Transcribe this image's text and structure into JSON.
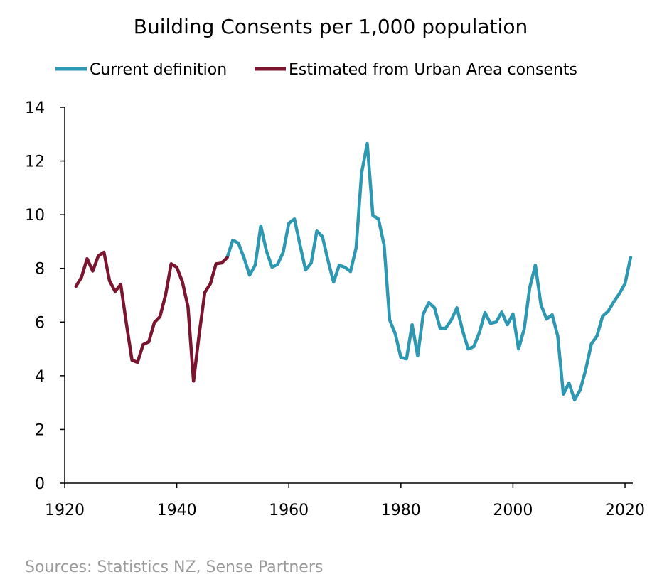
{
  "chart_data": {
    "type": "line",
    "title": "Building Consents per 1,000 population",
    "xlabel": "",
    "ylabel": "",
    "xlim": [
      1920,
      2021
    ],
    "ylim": [
      0,
      14
    ],
    "x_ticks": [
      1920,
      1940,
      1960,
      1980,
      2000,
      2020
    ],
    "y_ticks": [
      0,
      2,
      4,
      6,
      8,
      10,
      12,
      14
    ],
    "grid": false,
    "legend_position": "top",
    "series": [
      {
        "name": "Current definition",
        "color": "#2E98B3",
        "x": [
          1949,
          1950,
          1951,
          1952,
          1953,
          1954,
          1955,
          1956,
          1957,
          1958,
          1959,
          1960,
          1961,
          1962,
          1963,
          1964,
          1965,
          1966,
          1967,
          1968,
          1969,
          1970,
          1971,
          1972,
          1973,
          1974,
          1975,
          1976,
          1977,
          1978,
          1979,
          1980,
          1981,
          1982,
          1983,
          1984,
          1985,
          1986,
          1987,
          1988,
          1989,
          1990,
          1991,
          1992,
          1993,
          1994,
          1995,
          1996,
          1997,
          1998,
          1999,
          2000,
          2001,
          2002,
          2003,
          2004,
          2005,
          2006,
          2007,
          2008,
          2009,
          2010,
          2011,
          2012,
          2013,
          2014,
          2015,
          2016,
          2017,
          2018,
          2019,
          2020,
          2021
        ],
        "y": [
          8.4,
          9.05,
          8.94,
          8.39,
          7.75,
          8.12,
          9.58,
          8.65,
          8.04,
          8.15,
          8.6,
          9.68,
          9.84,
          8.86,
          7.94,
          8.2,
          9.39,
          9.18,
          8.28,
          7.49,
          8.12,
          8.04,
          7.88,
          8.76,
          11.56,
          12.65,
          9.97,
          9.84,
          8.86,
          6.08,
          5.56,
          4.68,
          4.63,
          5.9,
          4.74,
          6.3,
          6.72,
          6.53,
          5.77,
          5.77,
          6.08,
          6.53,
          5.69,
          5.0,
          5.08,
          5.6,
          6.35,
          5.95,
          6.0,
          6.37,
          5.9,
          6.3,
          5.0,
          5.74,
          7.28,
          8.12,
          6.64,
          6.11,
          6.27,
          5.48,
          3.31,
          3.73,
          3.1,
          3.47,
          4.23,
          5.19,
          5.48,
          6.22,
          6.4,
          6.75,
          7.06,
          7.43,
          8.41
        ]
      },
      {
        "name": "Estimated from Urban Area consents",
        "color": "#7A1530",
        "x": [
          1922,
          1923,
          1924,
          1925,
          1926,
          1927,
          1928,
          1929,
          1930,
          1931,
          1932,
          1933,
          1934,
          1935,
          1936,
          1937,
          1938,
          1939,
          1940,
          1941,
          1942,
          1943,
          1944,
          1945,
          1946,
          1947,
          1948,
          1949
        ],
        "y": [
          7.33,
          7.67,
          8.36,
          7.9,
          8.47,
          8.6,
          7.54,
          7.14,
          7.4,
          5.95,
          4.58,
          4.5,
          5.16,
          5.26,
          5.98,
          6.2,
          7.0,
          8.17,
          8.04,
          7.5,
          6.56,
          3.8,
          5.55,
          7.1,
          7.43,
          8.17,
          8.2,
          8.4
        ]
      }
    ],
    "source": "Sources: Statistics NZ, Sense Partners"
  }
}
